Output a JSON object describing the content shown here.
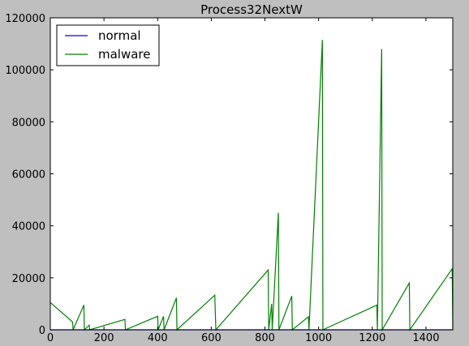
{
  "chart_data": {
    "type": "line",
    "title": "Process32NextW",
    "xlabel": "",
    "ylabel": "",
    "xlim": [
      0,
      1500
    ],
    "ylim": [
      0,
      120000
    ],
    "xticks": [
      0,
      200,
      400,
      600,
      800,
      1000,
      1200,
      1400
    ],
    "yticks": [
      0,
      20000,
      40000,
      60000,
      80000,
      100000,
      120000
    ],
    "grid": false,
    "legend_position": "top-left",
    "series": [
      {
        "name": "normal",
        "color": "#0000ff",
        "x": [
          0,
          1500
        ],
        "y": [
          0,
          0
        ]
      },
      {
        "name": "malware",
        "color": "#008000",
        "x": [
          0,
          83,
          85,
          125,
          127,
          145,
          147,
          278,
          280,
          400,
          402,
          422,
          424,
          470,
          472,
          613,
          617,
          812,
          814,
          825,
          827,
          850,
          852,
          900,
          902,
          962,
          964,
          1014,
          1016,
          1217,
          1219,
          1235,
          1237,
          1338,
          1340,
          1498,
          1500
        ],
        "y": [
          10500,
          3000,
          0,
          9500,
          0,
          1800,
          0,
          4000,
          0,
          5200,
          0,
          5200,
          0,
          12300,
          0,
          13300,
          0,
          23000,
          0,
          10000,
          0,
          45000,
          0,
          13000,
          0,
          5000,
          0,
          111500,
          0,
          9500,
          0,
          108000,
          0,
          18000,
          0,
          23500,
          0
        ]
      }
    ]
  }
}
